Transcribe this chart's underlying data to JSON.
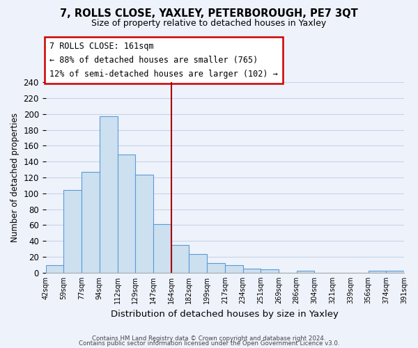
{
  "title": "7, ROLLS CLOSE, YAXLEY, PETERBOROUGH, PE7 3QT",
  "subtitle": "Size of property relative to detached houses in Yaxley",
  "xlabel": "Distribution of detached houses by size in Yaxley",
  "ylabel": "Number of detached properties",
  "bin_labels": [
    "42sqm",
    "59sqm",
    "77sqm",
    "94sqm",
    "112sqm",
    "129sqm",
    "147sqm",
    "164sqm",
    "182sqm",
    "199sqm",
    "217sqm",
    "234sqm",
    "251sqm",
    "269sqm",
    "286sqm",
    "304sqm",
    "321sqm",
    "339sqm",
    "356sqm",
    "374sqm",
    "391sqm"
  ],
  "bar_values": [
    10,
    104,
    127,
    197,
    149,
    124,
    61,
    35,
    24,
    12,
    10,
    5,
    4,
    0,
    3,
    0,
    0,
    0,
    3,
    3
  ],
  "bar_color": "#cce0f0",
  "bar_edge_color": "#5b9bd5",
  "vline_x": 7,
  "vline_color": "#aa0000",
  "ylim": [
    0,
    240
  ],
  "yticks": [
    0,
    20,
    40,
    60,
    80,
    100,
    120,
    140,
    160,
    180,
    200,
    220,
    240
  ],
  "annotation_text": "7 ROLLS CLOSE: 161sqm\n← 88% of detached houses are smaller (765)\n12% of semi-detached houses are larger (102) →",
  "footer1": "Contains HM Land Registry data © Crown copyright and database right 2024.",
  "footer2": "Contains public sector information licensed under the Open Government Licence v3.0.",
  "bg_color": "#eef2fb",
  "grid_color": "#c8d4e8",
  "title_fontsize": 10.5,
  "subtitle_fontsize": 9,
  "ylabel_fontsize": 8.5,
  "xlabel_fontsize": 9.5
}
